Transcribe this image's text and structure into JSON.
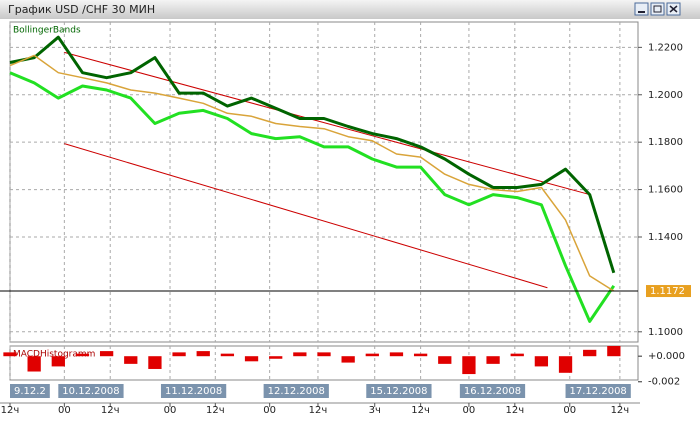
{
  "window_title": "График USD /CHF  30 МИН",
  "chart_data": [
    {
      "type": "line",
      "indicator": "BollingerBands",
      "x": [
        0,
        4,
        8,
        12,
        16,
        20,
        24,
        28,
        32,
        36,
        40,
        44,
        48,
        52,
        56,
        60,
        64,
        68,
        72,
        76,
        80,
        84,
        88,
        92,
        96,
        100
      ],
      "xlim": [
        0,
        104
      ],
      "ylim": [
        1.0957,
        1.2307
      ],
      "yticks": [
        {
          "value": 1.1,
          "label": "1.1000"
        },
        {
          "value": 1.14,
          "label": "1.1400"
        },
        {
          "value": 1.16,
          "label": "1.1600"
        },
        {
          "value": 1.18,
          "label": "1.1800"
        },
        {
          "value": 1.2,
          "label": "1.2000"
        },
        {
          "value": 1.22,
          "label": "1.2200"
        }
      ],
      "grid": true,
      "last_price": 1.1172,
      "series": [
        {
          "color": "#006400",
          "values": [
            1.2136,
            1.2157,
            1.2243,
            1.2093,
            1.2072,
            1.2093,
            1.2157,
            1.2007,
            1.2007,
            1.1952,
            1.1986,
            1.1943,
            1.19,
            1.19,
            1.1866,
            1.1836,
            1.1815,
            1.178,
            1.1729,
            1.1665,
            1.1609,
            1.1609,
            1.1622,
            1.1686,
            1.1579,
            1.1249
          ]
        },
        {
          "color": "#22e022",
          "values": [
            1.2093,
            1.205,
            1.1986,
            1.2037,
            1.202,
            1.1986,
            1.1879,
            1.1922,
            1.1934,
            1.19,
            1.1836,
            1.1815,
            1.1823,
            1.178,
            1.178,
            1.1729,
            1.1695,
            1.1695,
            1.1579,
            1.1536,
            1.1579,
            1.1566,
            1.1536,
            1.1279,
            1.1044,
            1.1194
          ]
        },
        {
          "color": "#d9a43a",
          "values": [
            1.2123,
            1.2166,
            1.2093,
            1.2072,
            1.205,
            1.202,
            1.2007,
            1.1986,
            1.1964,
            1.1922,
            1.1909,
            1.1879,
            1.1866,
            1.1857,
            1.1823,
            1.1806,
            1.175,
            1.1737,
            1.1665,
            1.1622,
            1.16,
            1.1592,
            1.1609,
            1.1472,
            1.1236,
            1.1172
          ]
        }
      ],
      "channels": [
        {
          "color": "#cc0000",
          "x": [
            9,
            96
          ],
          "values": [
            1.2179,
            1.1579
          ]
        },
        {
          "color": "#cc0000",
          "x": [
            9,
            89
          ],
          "values": [
            1.1794,
            1.1186
          ]
        }
      ]
    },
    {
      "type": "bar",
      "indicator": "MACDHistogramm",
      "color": "#e00000",
      "x": [
        0,
        4,
        8,
        12,
        16,
        20,
        24,
        28,
        32,
        36,
        40,
        44,
        48,
        52,
        56,
        60,
        64,
        68,
        72,
        76,
        80,
        84,
        88,
        92,
        96,
        100
      ],
      "values": [
        0.0003,
        -0.0012,
        -0.0008,
        0.0002,
        0.0004,
        -0.0006,
        -0.001,
        0.0003,
        0.0004,
        0.0002,
        -0.0004,
        -0.0002,
        0.0003,
        0.0003,
        -0.0005,
        0.0002,
        0.0003,
        0.0002,
        -0.0006,
        -0.0014,
        -0.0006,
        0.0002,
        -0.0008,
        -0.0013,
        0.0005,
        0.0008
      ],
      "xlim": [
        0,
        104
      ],
      "ylim": [
        -0.0021,
        0.0008
      ],
      "yticks": [
        {
          "value": 0,
          "label": "+0.000"
        },
        {
          "value": -0.002,
          "label": "-0.002"
        }
      ],
      "xticks": [
        {
          "value": 0,
          "label": "12ч"
        },
        {
          "value": 9,
          "label": "00"
        },
        {
          "value": 16.6,
          "label": "12ч"
        },
        {
          "value": 26.5,
          "label": "00"
        },
        {
          "value": 34,
          "label": "12ч"
        },
        {
          "value": 43,
          "label": "00"
        },
        {
          "value": 51,
          "label": "12ч"
        },
        {
          "value": 60.4,
          "label": "3ч"
        },
        {
          "value": 68,
          "label": "12ч"
        },
        {
          "value": 76,
          "label": "00"
        },
        {
          "value": 83.6,
          "label": "12ч"
        },
        {
          "value": 92.7,
          "label": "00"
        },
        {
          "value": 101,
          "label": "12ч"
        }
      ],
      "date_ticks": [
        {
          "value": 0,
          "label": "9.12.2"
        },
        {
          "value": 8,
          "label": "10.12.2008"
        },
        {
          "value": 25,
          "label": "11.12.2008"
        },
        {
          "value": 42,
          "label": "12.12.2008"
        },
        {
          "value": 59,
          "label": "15.12.2008"
        },
        {
          "value": 74.5,
          "label": "16.12.2008"
        },
        {
          "value": 92,
          "label": "17.12.2008"
        }
      ]
    }
  ]
}
